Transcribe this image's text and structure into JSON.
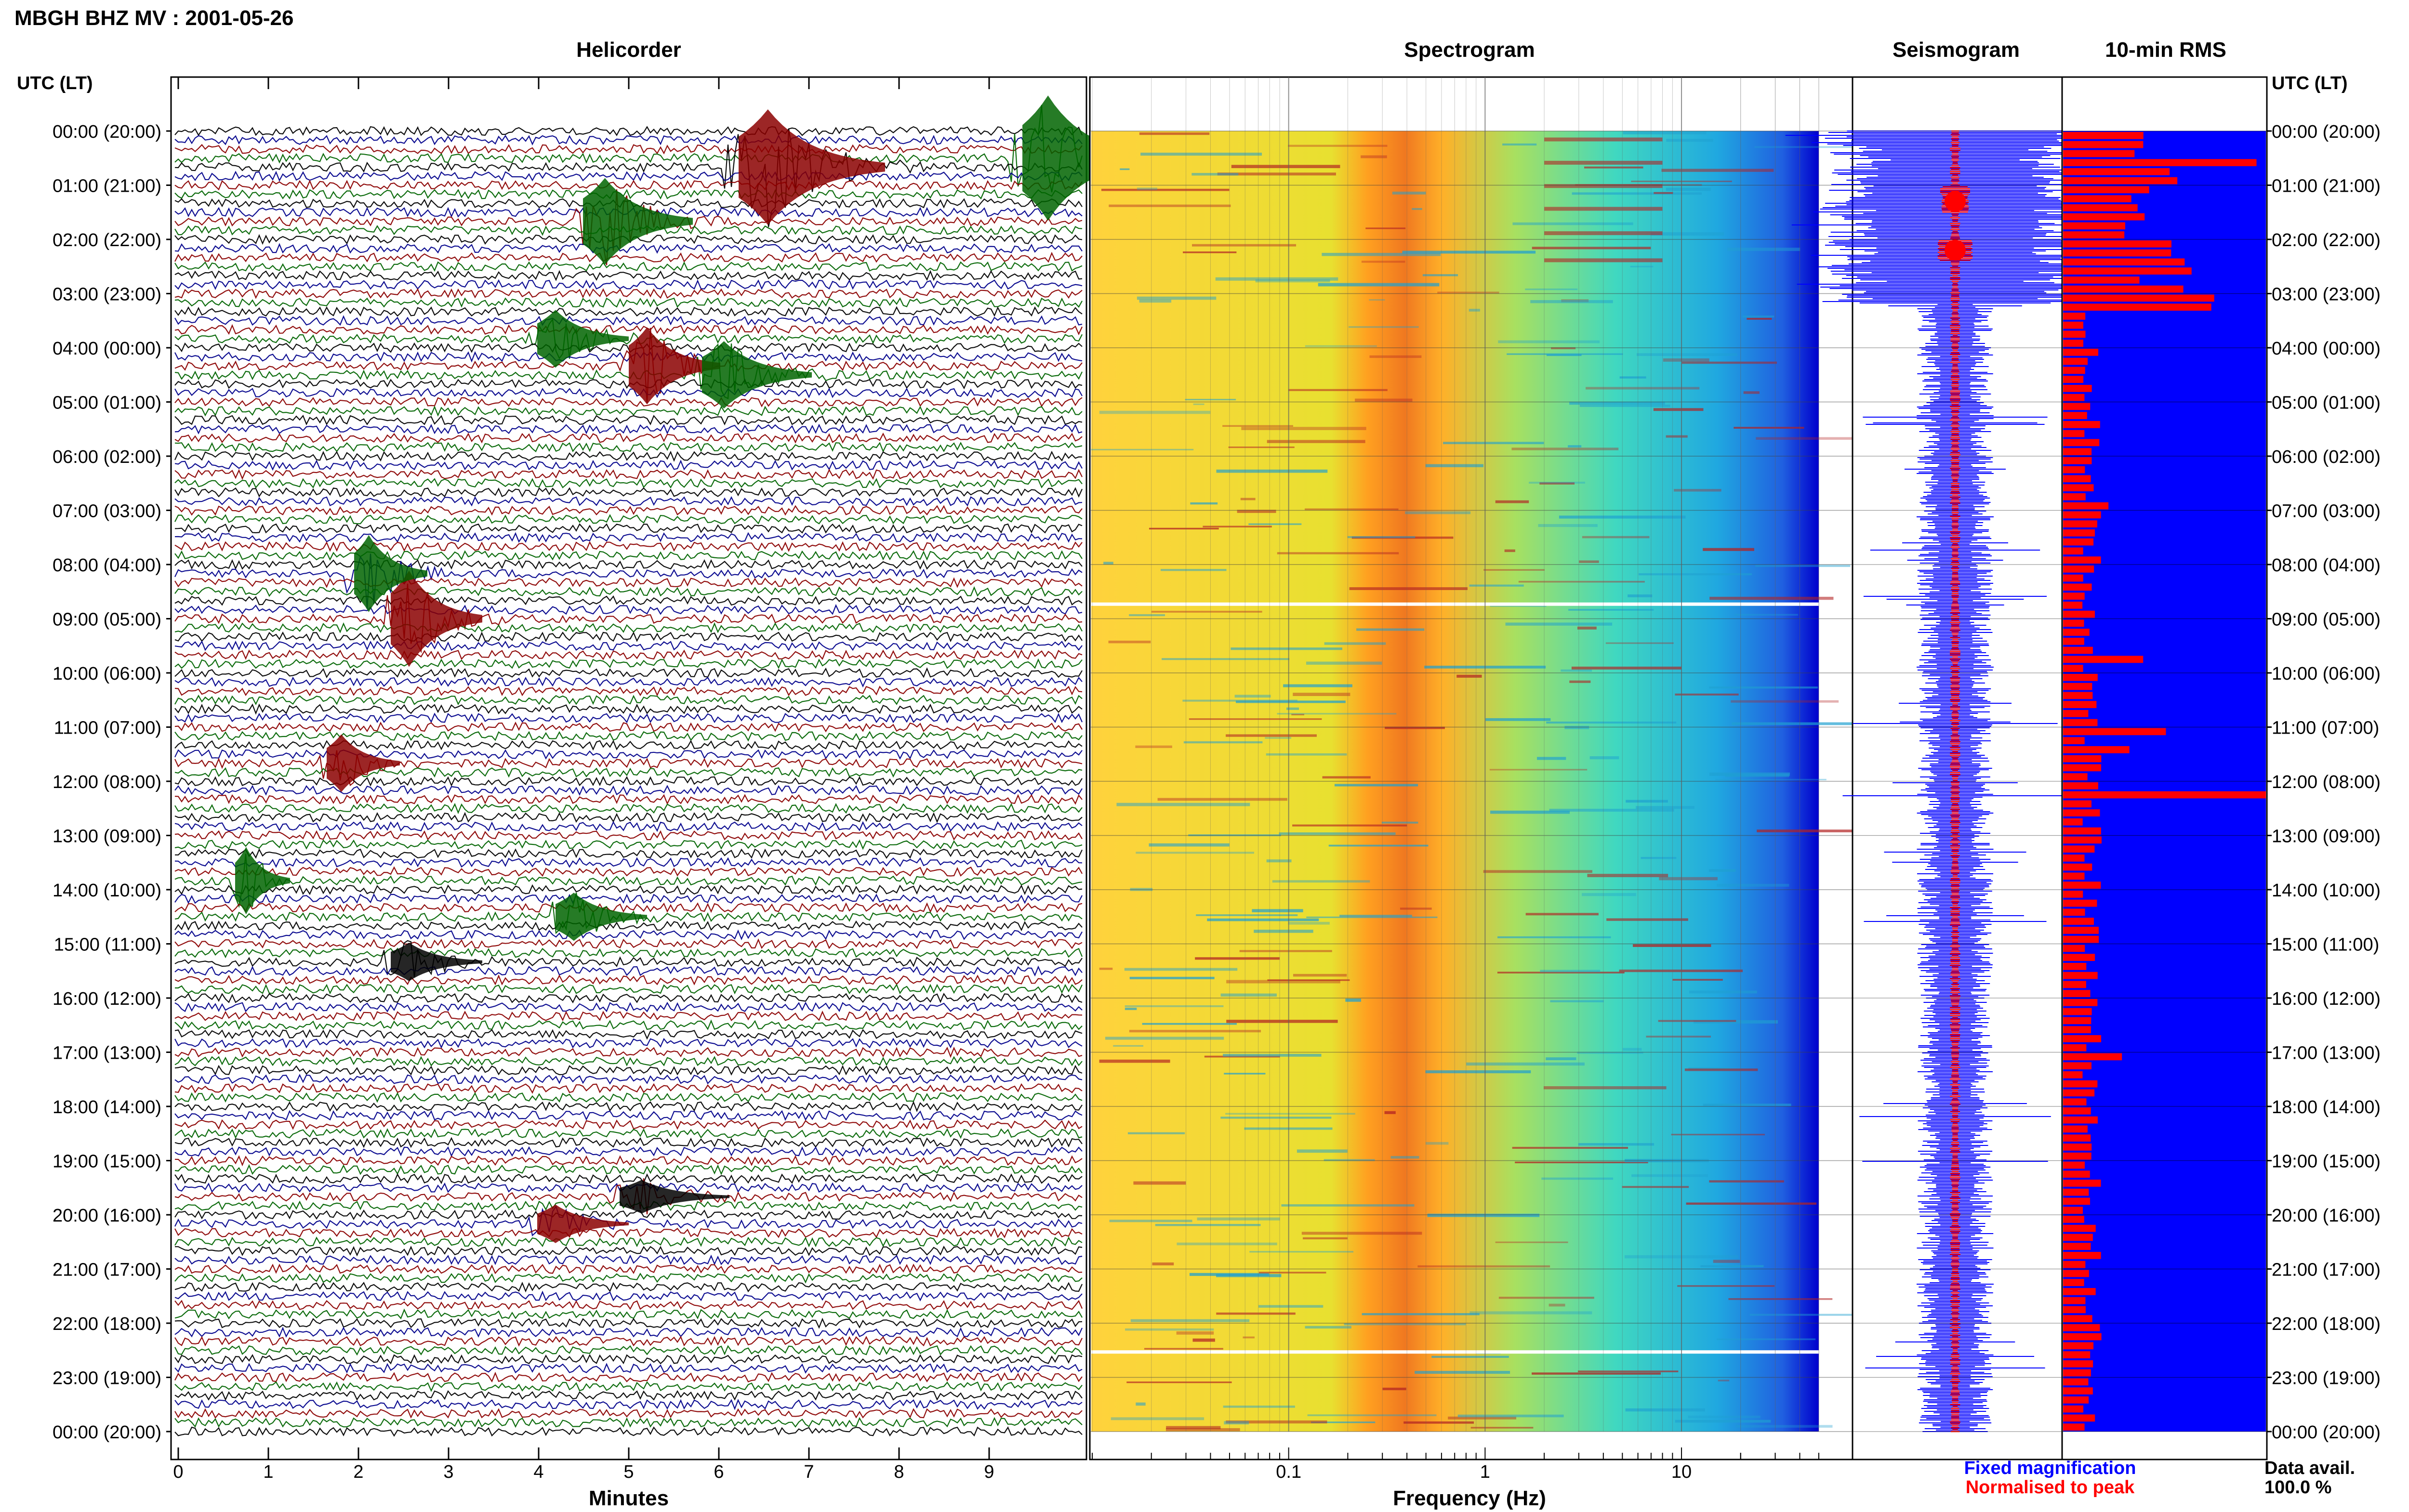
{
  "header": {
    "title": "MBGH BHZ MV : 2001-05-26",
    "utc_label_left": "UTC (LT)",
    "utc_label_right": "UTC (LT)"
  },
  "panels": {
    "helicorder_title": "Helicorder",
    "spectrogram_title": "Spectrogram",
    "seismogram_title": "Seismogram",
    "rms_title": "10-min RMS",
    "helicorder_xlabel": "Minutes",
    "spectrogram_xlabel": "Frequency (Hz)"
  },
  "legend": {
    "fixed": "Fixed magnification",
    "normalised": "Normalised to peak",
    "data_avail_label": "Data avail.",
    "data_avail_value": "100.0 %"
  },
  "colors": {
    "trace_cycle": [
      "#000000",
      "#00008b",
      "#8b0000",
      "#006400"
    ],
    "seis_fixed": "#0000ff",
    "seis_norm": "#ff0000",
    "rms_bg": "#0000ff",
    "rms_bar": "#ff0000",
    "spec_low": "#0000cd",
    "spec_high": "#b22222"
  },
  "chart_data": [
    {
      "type": "line",
      "name": "helicorder",
      "title": "Helicorder",
      "xlabel": "Minutes",
      "xlim": [
        0,
        10
      ],
      "xticks": [
        "0",
        "1",
        "2",
        "3",
        "4",
        "5",
        "6",
        "7",
        "8",
        "9"
      ],
      "ylabels": [
        "00:00 (20:00)",
        "01:00 (21:00)",
        "02:00 (22:00)",
        "03:00 (23:00)",
        "04:00 (00:00)",
        "05:00 (01:00)",
        "06:00 (02:00)",
        "07:00 (03:00)",
        "08:00 (04:00)",
        "09:00 (05:00)",
        "10:00 (06:00)",
        "11:00 (07:00)",
        "12:00 (08:00)",
        "13:00 (09:00)",
        "14:00 (10:00)",
        "15:00 (11:00)",
        "16:00 (12:00)",
        "17:00 (13:00)",
        "18:00 (14:00)",
        "19:00 (15:00)",
        "20:00 (16:00)",
        "21:00 (17:00)",
        "22:00 (18:00)",
        "23:00 (19:00)",
        "00:00 (20:00)"
      ],
      "lines_per_hour": 6
    },
    {
      "type": "heatmap",
      "name": "spectrogram",
      "title": "Spectrogram",
      "xlabel": "Frequency (Hz)",
      "xscale": "log",
      "xticks": [
        "0.1",
        "1",
        "10"
      ],
      "x_range_hz": [
        0.01,
        50
      ],
      "peak_band_hz": [
        0.25,
        0.6
      ]
    },
    {
      "type": "line",
      "name": "seismogram",
      "title": "Seismogram",
      "series": [
        {
          "name": "Fixed magnification",
          "color": "#0000ff"
        },
        {
          "name": "Normalised to peak",
          "color": "#ff0000"
        }
      ]
    },
    {
      "type": "bar",
      "name": "10-min rms",
      "title": "10-min RMS",
      "orientation": "horizontal",
      "bins_per_hour": 6
    }
  ]
}
